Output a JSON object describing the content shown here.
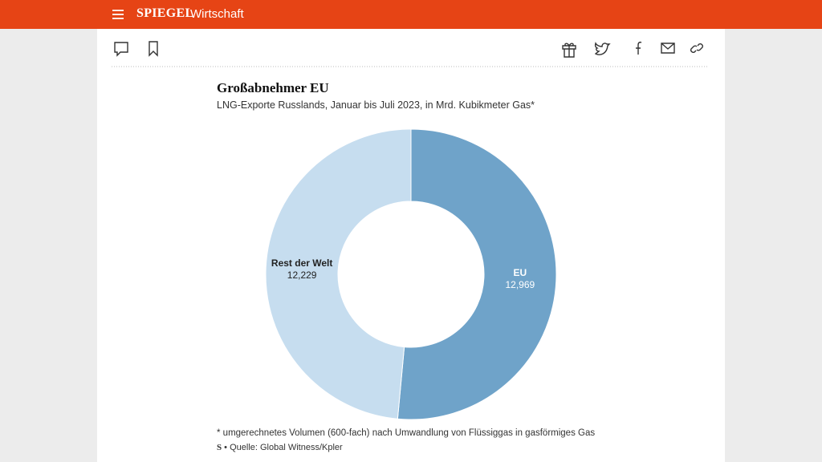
{
  "header": {
    "logo": "SPIEGEL",
    "section": "Wirtschaft"
  },
  "chart_data": {
    "type": "donut",
    "title": "Großabnehmer EU",
    "subtitle": "LNG-Exporte Russlands, Januar bis Juli 2023, in Mrd. Kubikmeter Gas*",
    "categories": [
      "EU",
      "Rest der Welt"
    ],
    "values": [
      12.969,
      12.229
    ],
    "value_labels": [
      "12,969",
      "12,229"
    ],
    "colors": [
      "#6fa3c9",
      "#c6ddef"
    ],
    "label_colors": [
      "#ffffff",
      "#222222"
    ],
    "footnote": "* umgerechnetes Volumen (600-fach) nach Umwandlung von Flüssiggas in gasförmiges Gas",
    "source_logo": "S",
    "source": "Quelle: Global Witness/Kpler"
  }
}
